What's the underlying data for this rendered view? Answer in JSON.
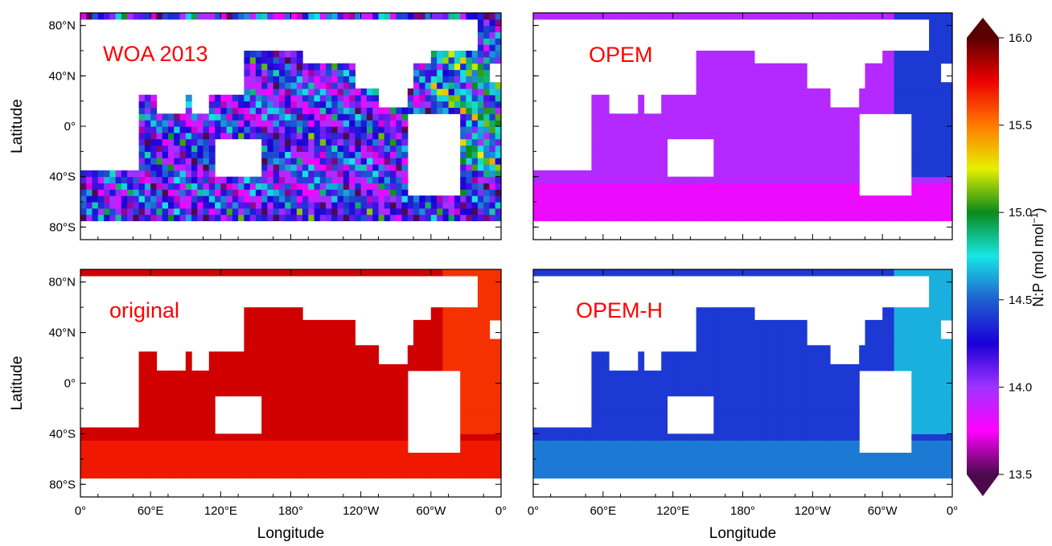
{
  "chart_data": {
    "type": "heatmap",
    "layout": "2x2 panels",
    "panels": [
      {
        "label": "WOA 2013",
        "pattern": "noisy",
        "dominant_value": 14.2
      },
      {
        "label": "OPEM",
        "pattern": "smooth",
        "dominant_value": 13.95,
        "low_latitude_values": {
          "north_atlantic": 14.4,
          "southern": 13.8
        }
      },
      {
        "label": "original",
        "pattern": "smooth",
        "dominant_value": 15.8,
        "low_latitude_values": {
          "atlantic": 15.65,
          "southern": 15.7
        }
      },
      {
        "label": "OPEM-H",
        "pattern": "smooth",
        "dominant_value": 14.4,
        "low_latitude_values": {
          "atlantic": 14.65,
          "southern": 14.55
        }
      }
    ],
    "xlabel": "Longitude",
    "ylabel": "Latitude",
    "x_ticks": [
      "0°",
      "60°E",
      "120°E",
      "180°",
      "120°W",
      "60°W",
      "0°"
    ],
    "y_ticks": [
      "80°N",
      "40°N",
      "0°",
      "40°S",
      "80°S"
    ],
    "xlim": [
      0,
      360
    ],
    "ylim": [
      -90,
      90
    ],
    "colorbar": {
      "label": "N:P (mol mol",
      "label_sup": "−1",
      "label_close": ")",
      "range": [
        13.5,
        16.0
      ],
      "ticks": [
        "16.0",
        "15.5",
        "15.0",
        "14.5",
        "14.0",
        "13.5"
      ],
      "extend": "both"
    }
  }
}
